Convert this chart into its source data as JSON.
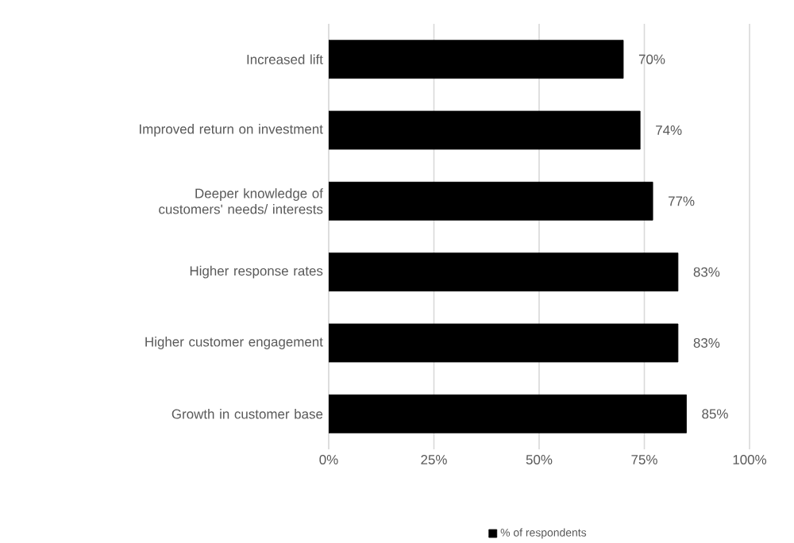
{
  "chart_data": {
    "type": "bar",
    "orientation": "horizontal",
    "categories": [
      "Increased lift",
      "Improved return on investment",
      "Deeper knowledge of customers' needs/ interests",
      "Higher response rates",
      "Higher customer engagement",
      "Growth in customer base"
    ],
    "series": [
      {
        "name": "% of respondents",
        "color": "#000000",
        "values": [
          70,
          74,
          77,
          83,
          83,
          85
        ],
        "value_labels": [
          "70%",
          "74%",
          "77%",
          "83%",
          "83%",
          "85%"
        ]
      }
    ],
    "xlim": [
      0,
      100
    ],
    "xticks": [
      {
        "value": 0,
        "label": "0%"
      },
      {
        "value": 25,
        "label": "25%"
      },
      {
        "value": 50,
        "label": "50%"
      },
      {
        "value": 75,
        "label": "75%"
      },
      {
        "value": 100,
        "label": "100%"
      }
    ],
    "grid": "x",
    "legend": "bottom"
  }
}
